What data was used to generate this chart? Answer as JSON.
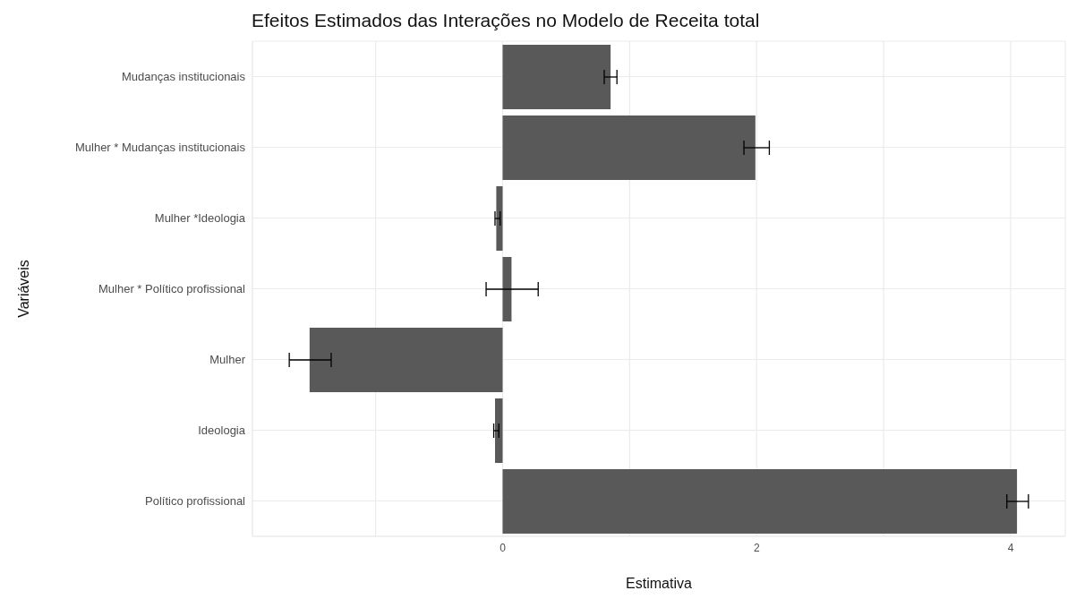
{
  "chart_data": {
    "type": "bar",
    "orientation": "horizontal",
    "title": "Efeitos Estimados das Interações no Modelo de Receita total",
    "xlabel": "Estimativa",
    "ylabel": "Variáveis",
    "categories": [
      "Mudanças institucionais",
      "Mulher * Mudanças institucionais",
      "Mulher *Ideologia",
      "Mulher * Político profissional",
      "Mulher",
      "Ideologia",
      "Político profissional"
    ],
    "values": [
      0.85,
      1.99,
      -0.05,
      0.07,
      -1.52,
      -0.06,
      4.05
    ],
    "errors": [
      [
        0.8,
        0.9
      ],
      [
        1.9,
        2.1
      ],
      [
        -0.06,
        -0.02
      ],
      [
        -0.13,
        0.28
      ],
      [
        -1.68,
        -1.35
      ],
      [
        -0.07,
        -0.03
      ],
      [
        3.97,
        4.14
      ]
    ],
    "color": "#595959",
    "xlim": [
      -1.97,
      4.43
    ],
    "xticks": [
      {
        "value": -1,
        "label": null
      },
      0,
      {
        "value": 1,
        "label": null
      },
      2,
      {
        "value": 3,
        "label": null
      },
      4
    ],
    "grid": true
  }
}
